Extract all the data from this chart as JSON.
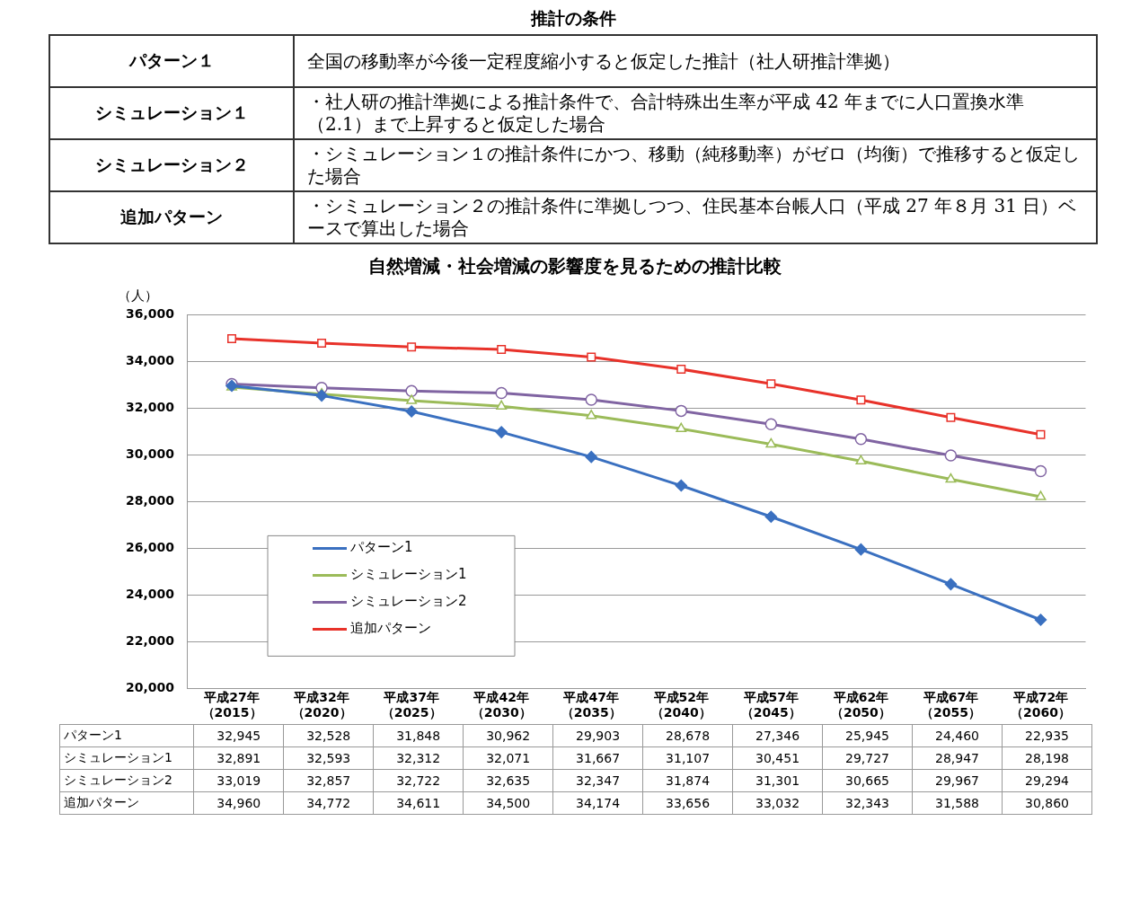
{
  "chart_data": [
    {
      "type": "other",
      "title": "推計の条件",
      "annotations": [
        "パターン１",
        "全国の移動率が今後一定程度縮小すると仮定した推計（社人研推計準拠）",
        "シミュレーション１",
        "・社人研の推計準拠による推計条件で、合計特殊出生率が平成 42 年までに人口置換水準（2.1）まで上昇すると仮定した場合",
        "シミュレーション２",
        "・シミュレーション１の推計条件にかつ、移動（純移動率）がゼロ（均衡）で推移すると仮定した場合",
        "追加パターン",
        "・シミュレーション２の推計条件に準拠しつつ、住民基本台帳人口（平成 27 年８月 31 日）ベースで算出した場合"
      ]
    },
    {
      "type": "line",
      "title": "自然増減・社会増減の影響度を見るための推計比較",
      "ylabel": "（人）",
      "categories": [
        "平成27年（2015）",
        "平成32年（2020）",
        "平成37年（2025）",
        "平成42年（2030）",
        "平成47年（2035）",
        "平成52年（2040）",
        "平成57年（2045）",
        "平成62年（2050）",
        "平成67年（2055）",
        "平成72年（2060）"
      ],
      "ylim": [
        20000,
        36000
      ],
      "yticks": [
        {
          "value": 20000,
          "label": "20,000"
        },
        {
          "value": 22000,
          "label": "22,000"
        },
        {
          "value": 24000,
          "label": "24,000"
        },
        {
          "value": 26000,
          "label": "26,000"
        },
        {
          "value": 28000,
          "label": "28,000"
        },
        {
          "value": 30000,
          "label": "30,000"
        },
        {
          "value": 32000,
          "label": "32,000"
        },
        {
          "value": 34000,
          "label": "34,000"
        },
        {
          "value": 36000,
          "label": "36,000"
        }
      ],
      "grid": "y",
      "legend": "bottom left",
      "line_style": "solid",
      "series": [
        {
          "name": "パターン1",
          "color": "#3a70c0",
          "marker": "diamond",
          "values": [
            32945,
            32528,
            31848,
            30962,
            29903,
            28678,
            27346,
            25945,
            24460,
            22935
          ],
          "value_labels": [
            "32,945",
            "32,528",
            "31,848",
            "30,962",
            "29,903",
            "28,678",
            "27,346",
            "25,945",
            "24,460",
            "22,935"
          ]
        },
        {
          "name": "シミュレーション1",
          "color": "#9bbb59",
          "marker": "triangle",
          "values": [
            32891,
            32593,
            32312,
            32071,
            31667,
            31107,
            30451,
            29727,
            28947,
            28198
          ],
          "value_labels": [
            "32,891",
            "32,593",
            "32,312",
            "32,071",
            "31,667",
            "31,107",
            "30,451",
            "29,727",
            "28,947",
            "28,198"
          ]
        },
        {
          "name": "シミュレーション2",
          "color": "#8064a2",
          "marker": "circle",
          "values": [
            33019,
            32857,
            32722,
            32635,
            32347,
            31874,
            31301,
            30665,
            29967,
            29294
          ],
          "value_labels": [
            "33,019",
            "32,857",
            "32,722",
            "32,635",
            "32,347",
            "31,874",
            "31,301",
            "30,665",
            "29,967",
            "29,294"
          ]
        },
        {
          "name": "追加パターン",
          "color": "#e8322a",
          "marker": "square",
          "values": [
            34960,
            34772,
            34611,
            34500,
            34174,
            33656,
            33032,
            32343,
            31588,
            30860
          ],
          "value_labels": [
            "34,960",
            "34,772",
            "34,611",
            "34,500",
            "34,174",
            "33,656",
            "33,032",
            "32,343",
            "31,588",
            "30,860"
          ]
        }
      ]
    }
  ]
}
